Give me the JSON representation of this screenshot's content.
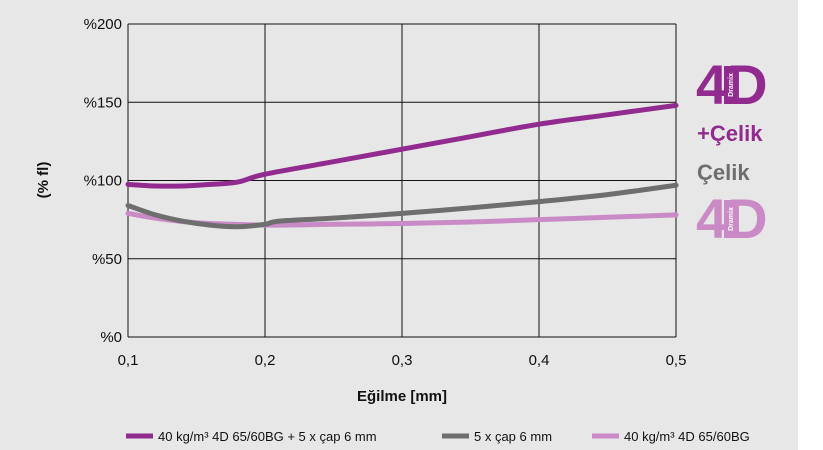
{
  "chart_data": {
    "type": "line",
    "xlabel": "Eğilme [mm]",
    "ylabel": "(% fl)",
    "xlim": [
      0.1,
      0.5
    ],
    "ylim": [
      0,
      200
    ],
    "x_ticks": [
      0.1,
      0.2,
      0.3,
      0.4,
      0.5
    ],
    "x_tick_labels": [
      "0,1",
      "0,2",
      "0,3",
      "0,4",
      "0,5"
    ],
    "y_ticks": [
      0,
      50,
      100,
      150,
      200
    ],
    "y_tick_labels": [
      "%0",
      "%50",
      "%100",
      "%150",
      "%200"
    ],
    "grid": true,
    "legend_position": "bottom",
    "series": [
      {
        "name": "40 kg/m³ 4D 65/60BG + 5 x çap 6 mm",
        "color": "#922b8f",
        "x": [
          0.1,
          0.12,
          0.14,
          0.16,
          0.18,
          0.2,
          0.25,
          0.3,
          0.35,
          0.4,
          0.45,
          0.5
        ],
        "y": [
          97.5,
          96.5,
          96.5,
          97.5,
          99,
          104,
          112,
          120,
          128,
          136,
          142,
          148
        ]
      },
      {
        "name": "5 x çap 6 mm",
        "color": "#6e6e6e",
        "x": [
          0.1,
          0.12,
          0.14,
          0.16,
          0.18,
          0.2,
          0.21,
          0.25,
          0.3,
          0.35,
          0.4,
          0.45,
          0.5
        ],
        "y": [
          84,
          78,
          74,
          71.5,
          70.5,
          72,
          74,
          76,
          79,
          82.5,
          86.5,
          91,
          97
        ]
      },
      {
        "name": "40 kg/m³ 4D 65/60BG",
        "color": "#c98ac6",
        "x": [
          0.1,
          0.12,
          0.15,
          0.2,
          0.25,
          0.3,
          0.35,
          0.4,
          0.45,
          0.5
        ],
        "y": [
          79,
          76,
          73,
          71.5,
          72,
          72.5,
          73.5,
          75,
          76.5,
          78
        ]
      }
    ]
  },
  "brand": {
    "top_4d": "4D",
    "top_word": "+Çelik",
    "middle_word": "Çelik",
    "bottom_4d": "4D",
    "badge_text": "Dramix",
    "top_color": "#922b8f",
    "middle_color": "#6e6e6e",
    "bottom_color": "#c98ac6"
  }
}
